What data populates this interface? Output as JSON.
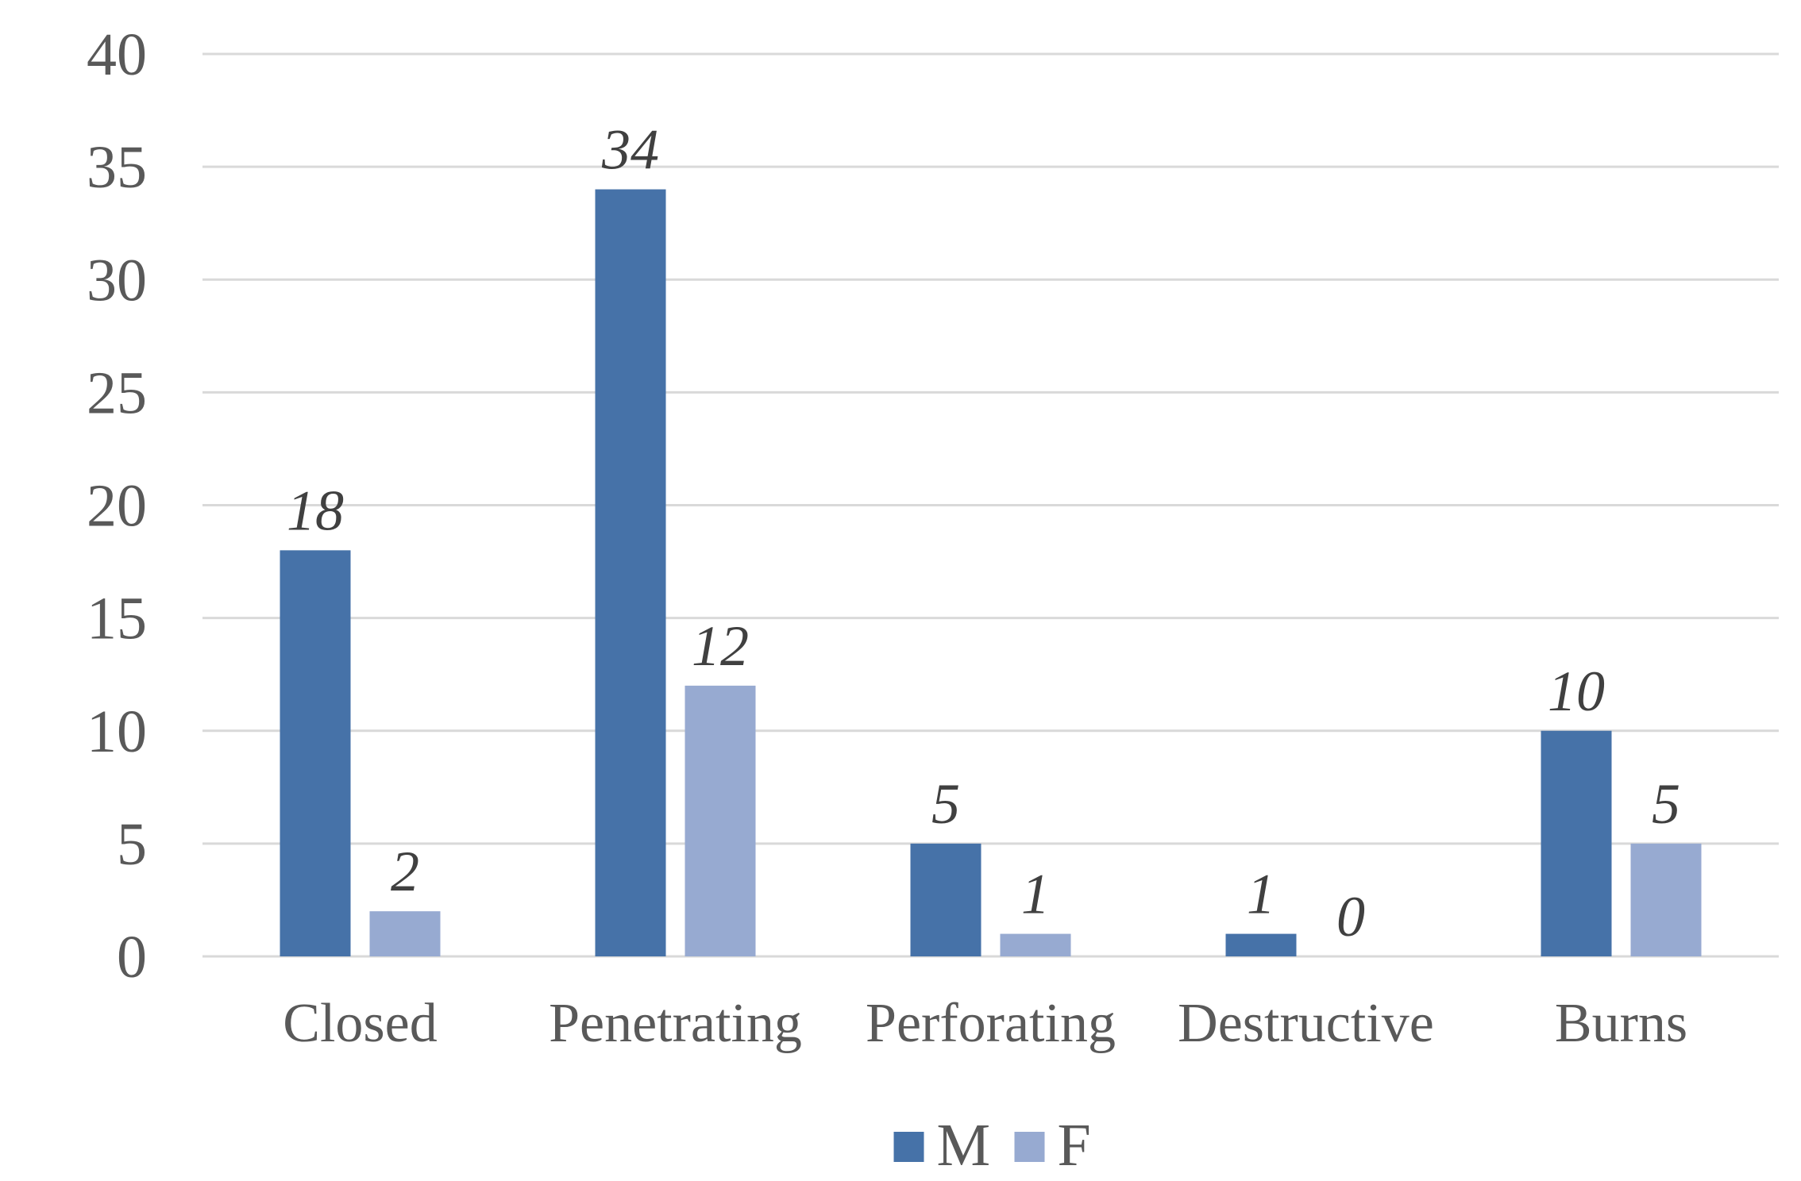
{
  "chart_data": {
    "type": "bar",
    "title": "",
    "xlabel": "",
    "ylabel": "",
    "categories": [
      "Closed",
      "Penetrating",
      "Perforating",
      "Destructive",
      "Burns"
    ],
    "series": [
      {
        "name": "M",
        "color": "#4672a8",
        "values": [
          18,
          34,
          5,
          1,
          10
        ]
      },
      {
        "name": "F",
        "color": "#97aad1",
        "values": [
          2,
          12,
          1,
          0,
          5
        ]
      }
    ],
    "ylim": [
      0,
      40
    ],
    "yticks": [
      0,
      5,
      10,
      15,
      20,
      25,
      30,
      35,
      40
    ],
    "grid": true,
    "data_labels": true,
    "legend_position": "bottom"
  }
}
